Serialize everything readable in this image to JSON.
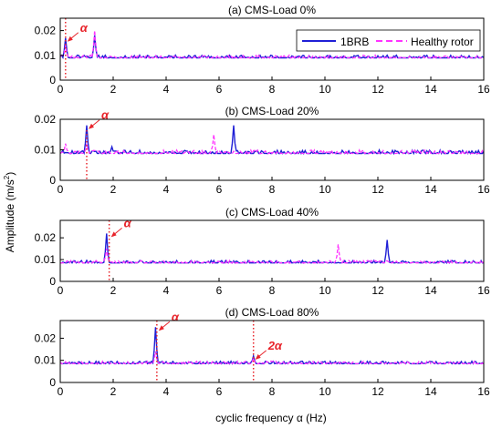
{
  "figure": {
    "ylabel_main": "Amplitude (m/s",
    "ylabel_sup": "2",
    "ylabel_close": ")",
    "xlabel": "cyclic frequency α (Hz)"
  },
  "colors": {
    "brb": "#1f1fd6",
    "healthy": "#ff33ff",
    "marker_line": "#e8232a",
    "annotation": "#e8232a",
    "axis": "#000000"
  },
  "legend": {
    "items": [
      "1BRB",
      "Healthy rotor"
    ],
    "placement": "top-right of panel (a)"
  },
  "chart_data": [
    {
      "type": "line",
      "title": "(a) CMS-Load 0%",
      "xlim": [
        0,
        16
      ],
      "ylim": [
        0,
        0.025
      ],
      "xticks": [
        "0",
        "2",
        "4",
        "6",
        "8",
        "10",
        "12",
        "14",
        "16"
      ],
      "yticks": [
        "0",
        "0.01",
        "0.02"
      ],
      "baseline": 0.009,
      "series": [
        {
          "name": "1BRB",
          "peaks": [
            [
              0.2,
              0.017
            ],
            [
              1.3,
              0.018
            ]
          ]
        },
        {
          "name": "Healthy rotor",
          "peaks": [
            [
              0.2,
              0.014
            ],
            [
              1.3,
              0.02
            ]
          ]
        }
      ],
      "markers": [
        {
          "x": 0.2,
          "label": "α"
        }
      ]
    },
    {
      "type": "line",
      "title": "(b) CMS-Load 20%",
      "xlim": [
        0,
        16
      ],
      "ylim": [
        0,
        0.02
      ],
      "xticks": [
        "0",
        "2",
        "4",
        "6",
        "8",
        "10",
        "12",
        "14",
        "16"
      ],
      "yticks": [
        "0",
        "0.01",
        "0.02"
      ],
      "baseline": 0.0088,
      "series": [
        {
          "name": "1BRB",
          "peaks": [
            [
              1.0,
              0.018
            ],
            [
              1.95,
              0.011
            ],
            [
              6.55,
              0.018
            ]
          ]
        },
        {
          "name": "Healthy rotor",
          "peaks": [
            [
              0.2,
              0.012
            ],
            [
              1.0,
              0.012
            ],
            [
              5.8,
              0.015
            ]
          ]
        }
      ],
      "markers": [
        {
          "x": 1.0,
          "label": "α"
        }
      ]
    },
    {
      "type": "line",
      "title": "(c) CMS-Load 40%",
      "xlim": [
        0,
        16
      ],
      "ylim": [
        0,
        0.028
      ],
      "xticks": [
        "0",
        "2",
        "4",
        "6",
        "8",
        "10",
        "12",
        "14",
        "16"
      ],
      "yticks": [
        "0",
        "0.01",
        "0.02"
      ],
      "baseline": 0.0085,
      "series": [
        {
          "name": "1BRB",
          "peaks": [
            [
              1.75,
              0.022
            ],
            [
              12.35,
              0.019
            ]
          ]
        },
        {
          "name": "Healthy rotor",
          "peaks": [
            [
              1.75,
              0.015
            ],
            [
              10.5,
              0.017
            ]
          ]
        }
      ],
      "markers": [
        {
          "x": 1.85,
          "label": "α"
        }
      ]
    },
    {
      "type": "line",
      "title": "(d) CMS-Load 80%",
      "xlim": [
        0,
        16
      ],
      "ylim": [
        0,
        0.028
      ],
      "xticks": [
        "0",
        "2",
        "4",
        "6",
        "8",
        "10",
        "12",
        "14",
        "16"
      ],
      "yticks": [
        "0",
        "0.01",
        "0.02"
      ],
      "baseline": 0.0085,
      "series": [
        {
          "name": "1BRB",
          "peaks": [
            [
              3.6,
              0.025
            ],
            [
              7.3,
              0.012
            ]
          ]
        },
        {
          "name": "Healthy rotor",
          "peaks": [
            [
              3.6,
              0.014
            ],
            [
              7.3,
              0.011
            ]
          ]
        }
      ],
      "markers": [
        {
          "x": 3.65,
          "label": "α"
        },
        {
          "x": 7.3,
          "label": "2α"
        }
      ]
    }
  ]
}
